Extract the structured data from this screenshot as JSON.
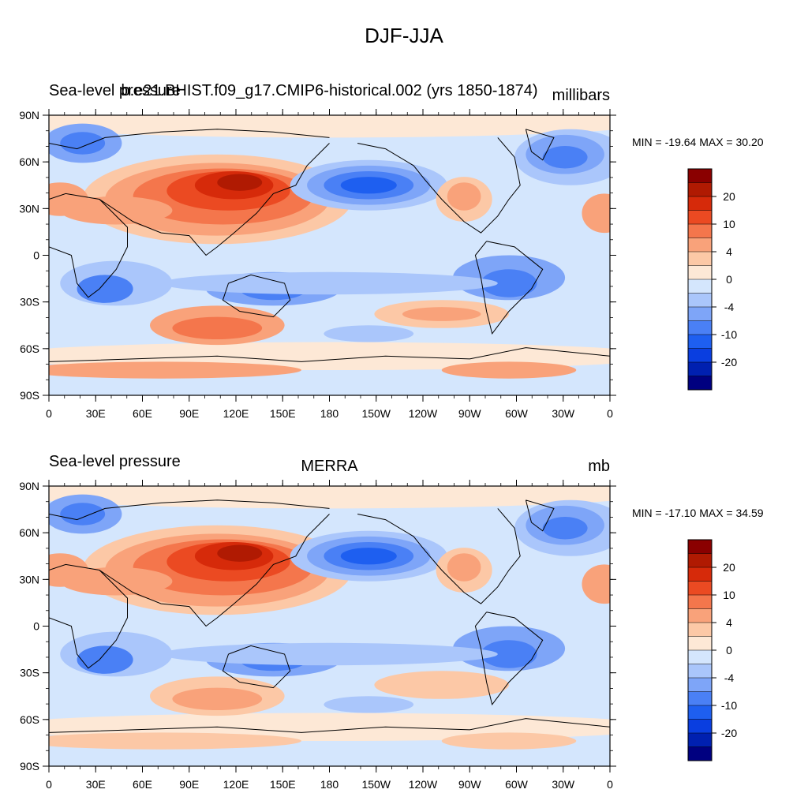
{
  "title": "DJF-JJA",
  "colors": [
    "#000080",
    "#0020b0",
    "#0a3ee0",
    "#1e5ff0",
    "#4a80f5",
    "#7ea5f8",
    "#aac6fb",
    "#d4e6fd",
    "#fde8d6",
    "#fcc8a6",
    "#f9a27a",
    "#f4764c",
    "#eb4a22",
    "#d62a0a",
    "#b01a02",
    "#8a0000"
  ],
  "x_ticks": [
    "0",
    "30E",
    "60E",
    "90E",
    "120E",
    "150E",
    "180",
    "150W",
    "120W",
    "90W",
    "60W",
    "30W",
    "0"
  ],
  "y_ticks": [
    "90N",
    "60N",
    "30N",
    "0",
    "30S",
    "60S",
    "90S"
  ],
  "colorbar_labels": [
    "20",
    "10",
    "4",
    "0",
    "-4",
    "-10",
    "-20"
  ],
  "panels": [
    {
      "left_label": "Sea-level pressure",
      "center_label": "b.e21.BHIST.f09_g17.CMIP6-historical.002 (yrs 1850-1874)",
      "right_label": "millibars",
      "minmax": "MIN = -19.64 MAX =  30.20"
    },
    {
      "left_label": "Sea-level pressure",
      "center_label": "MERRA",
      "right_label": "mb",
      "minmax": "MIN = -17.10 MAX =  34.59"
    }
  ]
}
